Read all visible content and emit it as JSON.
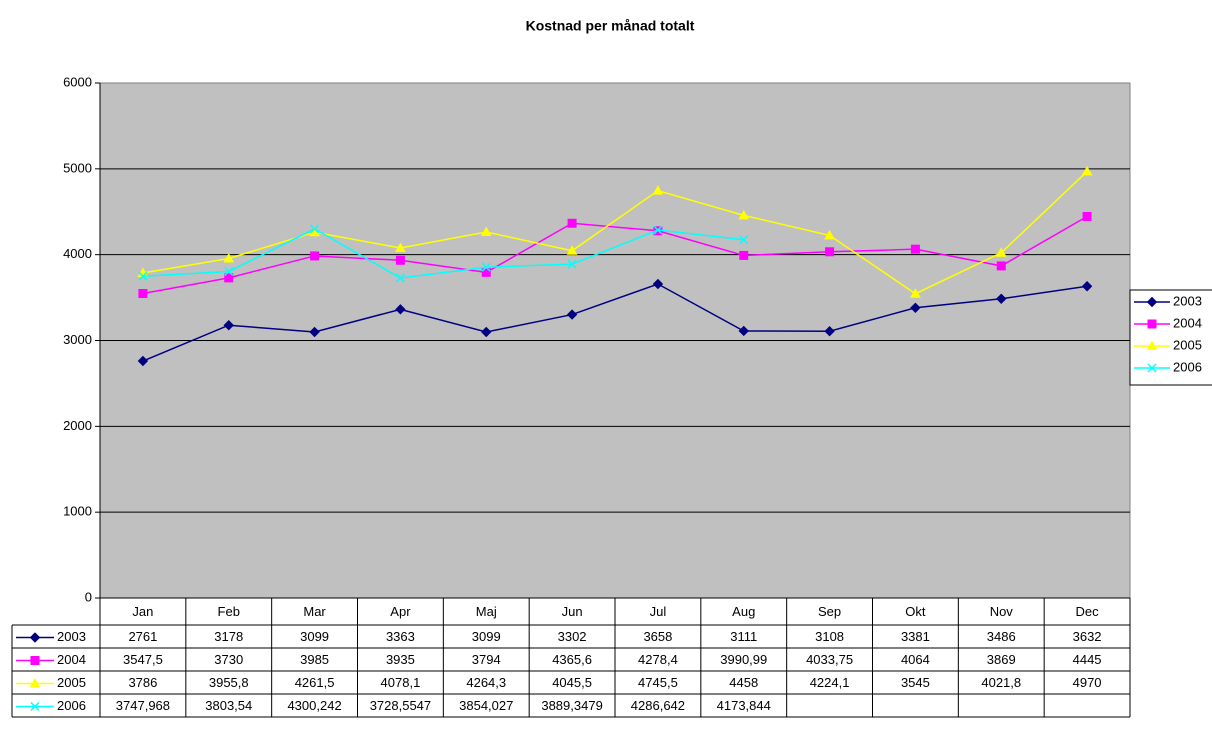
{
  "chart_data": {
    "type": "line",
    "title": "Kostnad per månad totalt",
    "categories": [
      "Jan",
      "Feb",
      "Mar",
      "Apr",
      "Maj",
      "Jun",
      "Jul",
      "Aug",
      "Sep",
      "Okt",
      "Nov",
      "Dec"
    ],
    "ylim": [
      0,
      6000
    ],
    "yticks": [
      0,
      1000,
      2000,
      3000,
      4000,
      5000,
      6000
    ],
    "grid": true,
    "legend": "right",
    "data_table": true,
    "series": [
      {
        "name": "2003",
        "color": "#000080",
        "marker": "diamond",
        "values": [
          2761,
          3178,
          3099,
          3363,
          3099,
          3302,
          3658,
          3111,
          3108,
          3381,
          3486,
          3632
        ],
        "value_labels": [
          "2761",
          "3178",
          "3099",
          "3363",
          "3099",
          "3302",
          "3658",
          "3111",
          "3108",
          "3381",
          "3486",
          "3632"
        ]
      },
      {
        "name": "2004",
        "color": "#FF00FF",
        "marker": "square",
        "values": [
          3547.5,
          3730,
          3985,
          3935,
          3794,
          4365.6,
          4278.4,
          3990.99,
          4033.75,
          4064,
          3869,
          4445
        ],
        "value_labels": [
          "3547,5",
          "3730",
          "3985",
          "3935",
          "3794",
          "4365,6",
          "4278,4",
          "3990,99",
          "4033,75",
          "4064",
          "3869",
          "4445"
        ]
      },
      {
        "name": "2005",
        "color": "#FFFF00",
        "marker": "triangle",
        "values": [
          3786,
          3955.8,
          4261.5,
          4078.1,
          4264.3,
          4045.5,
          4745.5,
          4458,
          4224.1,
          3545,
          4021.8,
          4970
        ],
        "value_labels": [
          "3786",
          "3955,8",
          "4261,5",
          "4078,1",
          "4264,3",
          "4045,5",
          "4745,5",
          "4458",
          "4224,1",
          "3545",
          "4021,8",
          "4970"
        ]
      },
      {
        "name": "2006",
        "color": "#00FFFF",
        "marker": "x",
        "values": [
          3747.968,
          3803.54,
          4300.242,
          3728.5547,
          3854.027,
          3889.3479,
          4286.642,
          4173.844,
          null,
          null,
          null,
          null
        ],
        "value_labels": [
          "3747,968",
          "3803,54",
          "4300,242",
          "3728,5547",
          "3854,027",
          "3889,3479",
          "4286,642",
          "4173,844",
          null,
          null,
          null,
          null
        ]
      }
    ]
  }
}
